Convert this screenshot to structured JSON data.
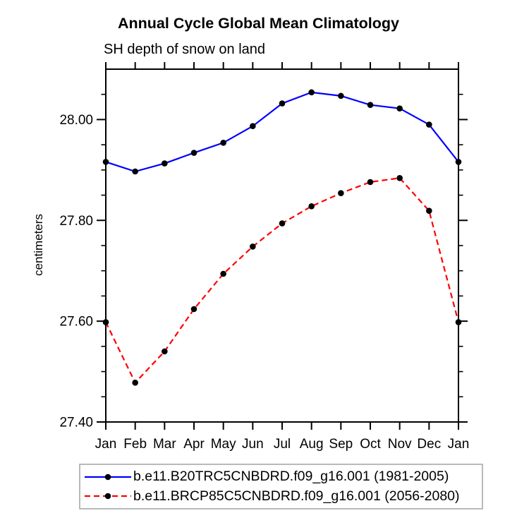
{
  "chart_data": {
    "type": "line",
    "title": "Annual Cycle Global Mean Climatology",
    "subtitle": "SH depth of snow on land",
    "ylabel": "centimeters",
    "xlabel": "",
    "categories": [
      "Jan",
      "Feb",
      "Mar",
      "Apr",
      "May",
      "Jun",
      "Jul",
      "Aug",
      "Sep",
      "Oct",
      "Nov",
      "Dec",
      "Jan"
    ],
    "y_axis": {
      "min": 27.4,
      "max": 28.1,
      "minor_step": 0.05,
      "major_ticks": [
        {
          "value": 27.4,
          "label": "27.40"
        },
        {
          "value": 27.6,
          "label": "27.60"
        },
        {
          "value": 27.8,
          "label": "27.80"
        },
        {
          "value": 28.0,
          "label": "28.00"
        }
      ]
    },
    "grid": false,
    "legend_position": "bottom",
    "marker_color": "#000000",
    "axis_color": "#000000",
    "series": [
      {
        "id": "b20trc5",
        "name": "b.e11.B20TRC5CNBDRD.f09_g16.001 (1981-2005)",
        "color": "#0000ff",
        "line_style": "solid",
        "marker": "filled-circle",
        "values": [
          27.916,
          27.897,
          27.913,
          27.934,
          27.954,
          27.987,
          28.032,
          28.054,
          28.047,
          28.029,
          28.022,
          27.99,
          27.916
        ]
      },
      {
        "id": "brcp85",
        "name": "b.e11.BRCP85C5CNBDRD.f09_g16.001 (2056-2080)",
        "color": "#ff0000",
        "line_style": "dashed",
        "marker": "filled-circle",
        "values": [
          27.598,
          27.478,
          27.54,
          27.624,
          27.694,
          27.748,
          27.794,
          27.828,
          27.854,
          27.876,
          27.884,
          27.819,
          27.598
        ]
      }
    ]
  }
}
